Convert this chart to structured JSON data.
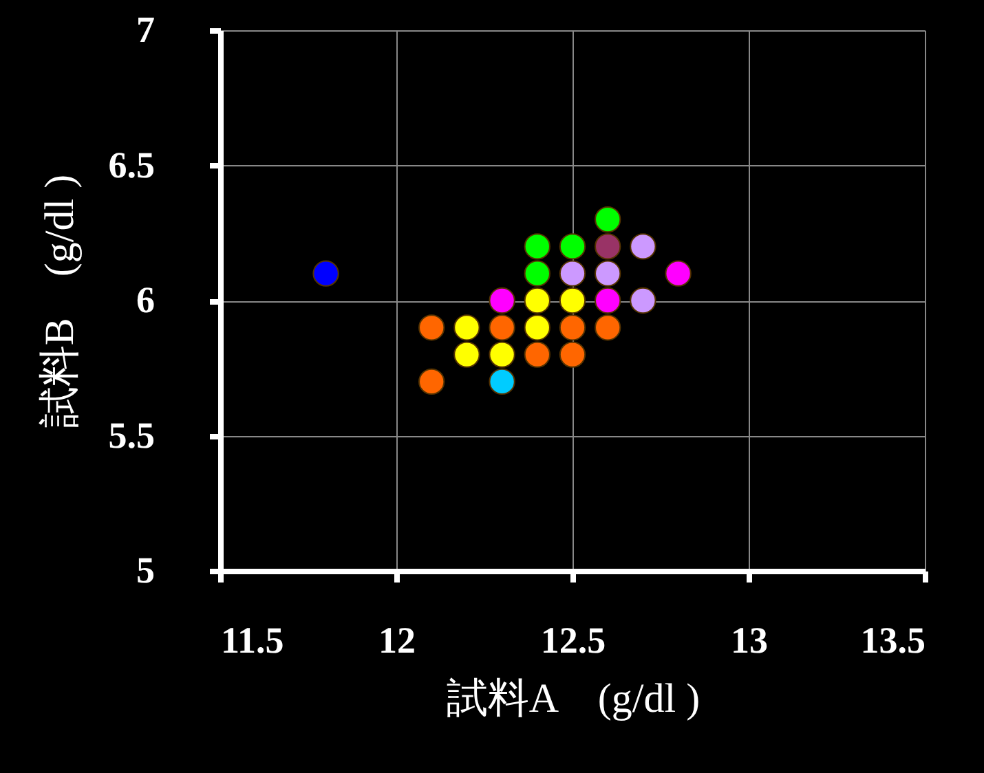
{
  "chart_data": {
    "type": "scatter",
    "xlabel": "試料A　(g/dl )",
    "ylabel": "試料B　(g/dl )",
    "xlim": [
      11.5,
      13.5
    ],
    "xticks": [
      11.5,
      12,
      12.5,
      13,
      13.5
    ],
    "ylim": [
      5,
      7
    ],
    "yticks": [
      5,
      5.5,
      6,
      6.5,
      7
    ],
    "grid": true,
    "marker": "circle",
    "series": [
      {
        "x": [
          11.8,
          12.1,
          12.1,
          12.2,
          12.2,
          12.3,
          12.3,
          12.3,
          12.3,
          12.4,
          12.4,
          12.4,
          12.4,
          12.4,
          12.5,
          12.5,
          12.5,
          12.5,
          12.5,
          12.6,
          12.6,
          12.6,
          12.6,
          12.6,
          12.7,
          12.7,
          12.8
        ],
        "values": [
          6.1,
          5.9,
          5.7,
          5.9,
          5.8,
          5.9,
          6.0,
          5.8,
          5.7,
          6.2,
          6.1,
          6.0,
          5.9,
          5.8,
          6.2,
          6.1,
          6.0,
          5.9,
          5.8,
          6.3,
          6.2,
          6.1,
          6.0,
          5.9,
          6.2,
          6.0,
          6.1
        ],
        "colors": [
          "#0000ff",
          "#ff6600",
          "#ff6600",
          "#ffff00",
          "#ffff00",
          "#ff6600",
          "#ff00ff",
          "#ffff00",
          "#00ccff",
          "#00ff00",
          "#00ff00",
          "#ffff00",
          "#ffff00",
          "#ff6600",
          "#00ff00",
          "#cc99ff",
          "#ffff00",
          "#ff6600",
          "#ff6600",
          "#00ff00",
          "#993366",
          "#cc99ff",
          "#ff00ff",
          "#ff6600",
          "#cc99ff",
          "#cc99ff",
          "#ff00ff"
        ]
      }
    ]
  }
}
